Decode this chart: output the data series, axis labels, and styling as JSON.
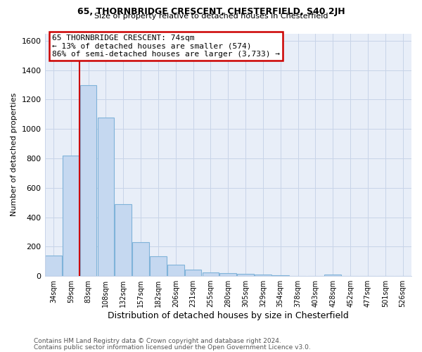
{
  "title1": "65, THORNBRIDGE CRESCENT, CHESTERFIELD, S40 2JH",
  "title2": "Size of property relative to detached houses in Chesterfield",
  "xlabel": "Distribution of detached houses by size in Chesterfield",
  "ylabel": "Number of detached properties",
  "annotation_line1": "65 THORNBRIDGE CRESCENT: 74sqm",
  "annotation_line2": "← 13% of detached houses are smaller (574)",
  "annotation_line3": "86% of semi-detached houses are larger (3,733) →",
  "footer1": "Contains HM Land Registry data © Crown copyright and database right 2024.",
  "footer2": "Contains public sector information licensed under the Open Government Licence v3.0.",
  "categories": [
    "34sqm",
    "59sqm",
    "83sqm",
    "108sqm",
    "132sqm",
    "157sqm",
    "182sqm",
    "206sqm",
    "231sqm",
    "255sqm",
    "280sqm",
    "305sqm",
    "329sqm",
    "354sqm",
    "378sqm",
    "403sqm",
    "428sqm",
    "452sqm",
    "477sqm",
    "501sqm",
    "526sqm"
  ],
  "values": [
    140,
    820,
    1300,
    1080,
    490,
    230,
    135,
    75,
    45,
    25,
    20,
    15,
    12,
    5,
    0,
    0,
    12,
    0,
    0,
    0,
    0
  ],
  "bar_color": "#c5d8f0",
  "bar_edge_color": "#7fb3d9",
  "red_line_index": 1.5,
  "ylim": [
    0,
    1650
  ],
  "yticks": [
    0,
    200,
    400,
    600,
    800,
    1000,
    1200,
    1400,
    1600
  ],
  "red_line_color": "#cc0000",
  "annotation_box_color": "#cc0000",
  "grid_color": "#c8d4e8",
  "plot_bg_color": "#e8eef8",
  "background_color": "#ffffff"
}
